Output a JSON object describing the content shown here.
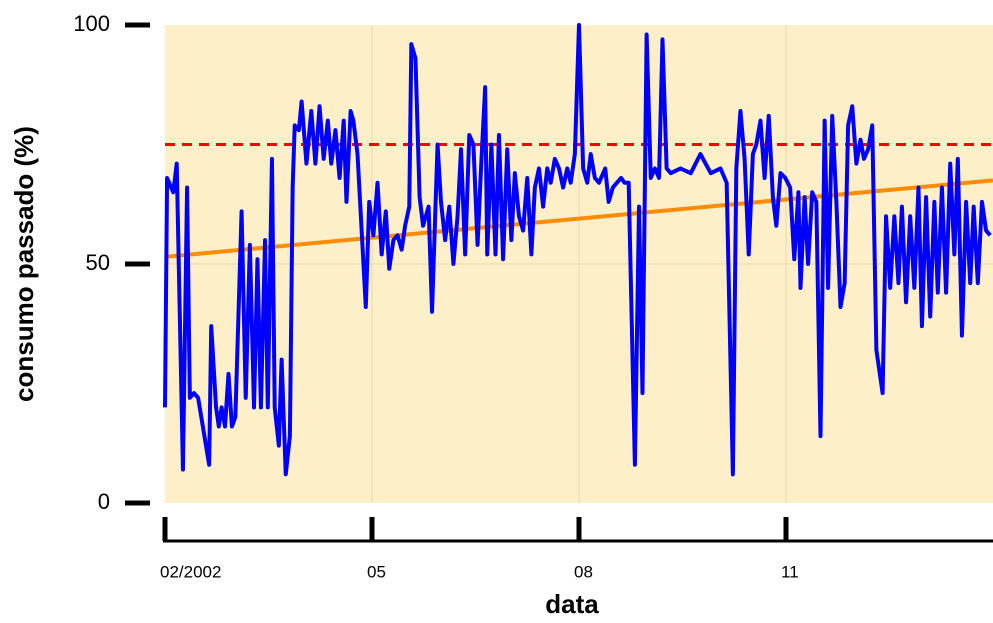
{
  "chart_data": {
    "type": "line",
    "xlabel": "data",
    "ylabel": "consumo passado (%)",
    "xlim": [
      0,
      12
    ],
    "ylim": [
      0,
      100
    ],
    "xticks": [
      {
        "value": 0,
        "label": "02/2002"
      },
      {
        "value": 3,
        "label": "05"
      },
      {
        "value": 6,
        "label": "08"
      },
      {
        "value": 9,
        "label": "11"
      }
    ],
    "yticks": [
      0,
      50,
      100
    ],
    "grid": true,
    "series": [
      {
        "color": "#0000ff",
        "x": [
          0,
          0.03,
          0.12,
          0.17,
          0.26,
          0.32,
          0.36,
          0.42,
          0.48,
          0.64,
          0.67,
          0.74,
          0.78,
          0.82,
          0.87,
          0.92,
          0.97,
          1.02,
          1.11,
          1.17,
          1.23,
          1.29,
          1.34,
          1.39,
          1.45,
          1.49,
          1.55,
          1.59,
          1.65,
          1.69,
          1.75,
          1.81,
          1.85,
          1.88,
          1.94,
          1.98,
          2.05,
          2.12,
          2.18,
          2.24,
          2.3,
          2.36,
          2.41,
          2.47,
          2.53,
          2.59,
          2.63,
          2.69,
          2.73,
          2.79,
          2.85,
          2.91,
          2.96,
          3.02,
          3.08,
          3.14,
          3.2,
          3.25,
          3.31,
          3.37,
          3.43,
          3.48,
          3.54,
          3.57,
          3.63,
          3.69,
          3.74,
          3.82,
          3.87,
          3.95,
          4.0,
          4.06,
          4.12,
          4.18,
          4.24,
          4.29,
          4.35,
          4.41,
          4.47,
          4.53,
          4.58,
          4.64,
          4.67,
          4.73,
          4.79,
          4.84,
          4.9,
          4.96,
          5.02,
          5.07,
          5.13,
          5.19,
          5.25,
          5.31,
          5.36,
          5.42,
          5.48,
          5.54,
          5.59,
          5.65,
          5.71,
          5.77,
          5.83,
          5.88,
          5.94,
          6.0,
          6.06,
          6.12,
          6.17,
          6.23,
          6.29,
          6.38,
          6.43,
          6.49,
          6.55,
          6.61,
          6.66,
          6.72,
          6.81,
          6.87,
          6.92,
          6.98,
          7.04,
          7.1,
          7.16,
          7.21,
          7.27,
          7.33,
          7.47,
          7.62,
          7.76,
          7.91,
          8.05,
          8.14,
          8.23,
          8.28,
          8.34,
          8.4,
          8.46,
          8.52,
          8.57,
          8.63,
          8.69,
          8.75,
          8.81,
          8.86,
          8.92,
          8.99,
          9.06,
          9.12,
          9.18,
          9.21,
          9.27,
          9.32,
          9.38,
          9.44,
          9.5,
          9.56,
          9.61,
          9.67,
          9.73,
          9.79,
          9.85,
          9.9,
          9.96,
          10.02,
          10.08,
          10.13,
          10.19,
          10.25,
          10.31,
          10.4,
          10.45,
          10.51,
          10.57,
          10.63,
          10.68,
          10.74,
          10.8,
          10.86,
          10.92,
          10.97,
          11.03,
          11.09,
          11.15,
          11.2,
          11.26,
          11.32,
          11.38,
          11.44,
          11.49,
          11.55,
          11.61,
          11.67,
          11.72,
          11.78,
          11.84,
          11.9,
          11.96
        ],
        "values": [
          20,
          68,
          65,
          71,
          7,
          66,
          22,
          23,
          22,
          8,
          37,
          20,
          16,
          20,
          16,
          27,
          16,
          18,
          61,
          22,
          54,
          20,
          51,
          20,
          55,
          20,
          72,
          20,
          12,
          30,
          6,
          14,
          66,
          79,
          78,
          84,
          71,
          82,
          71,
          83,
          72,
          80,
          71,
          78,
          68,
          80,
          63,
          82,
          80,
          73,
          57,
          41,
          63,
          56,
          67,
          52,
          61,
          49,
          55,
          56,
          53,
          58,
          62,
          96,
          93,
          64,
          58,
          62,
          40,
          75,
          63,
          55,
          62,
          50,
          60,
          74,
          52,
          77,
          75,
          54,
          70,
          87,
          52,
          75,
          52,
          77,
          51,
          74,
          55,
          69,
          60,
          57,
          68,
          52,
          66,
          70,
          62,
          70,
          67,
          72,
          70,
          66,
          70,
          67,
          73,
          100,
          70,
          67,
          73,
          68,
          67,
          70,
          63,
          66,
          67,
          68,
          67,
          67,
          8,
          62,
          23,
          98,
          68,
          70,
          68,
          97,
          70,
          69,
          70,
          69,
          73,
          69,
          70,
          67,
          6,
          70,
          82,
          72,
          52,
          73,
          75,
          80,
          68,
          81,
          64,
          58,
          69,
          68,
          66,
          51,
          65,
          45,
          64,
          50,
          65,
          63,
          14,
          80,
          45,
          81,
          63,
          41,
          46,
          79,
          83,
          71,
          76,
          72,
          74,
          79,
          32,
          23,
          60,
          45,
          60,
          46,
          62,
          42,
          60,
          45,
          66,
          37,
          64,
          39,
          63,
          44,
          66,
          44,
          71,
          52,
          72,
          35,
          63,
          46,
          62,
          46,
          63,
          57,
          56
        ]
      },
      {
        "color": "#ff8c00",
        "x": [
          0,
          12
        ],
        "values": [
          51.5,
          67.5
        ]
      },
      {
        "color": "#ff0000",
        "dashed": true,
        "x": [
          0,
          12
        ],
        "values": [
          75,
          75
        ]
      }
    ]
  }
}
